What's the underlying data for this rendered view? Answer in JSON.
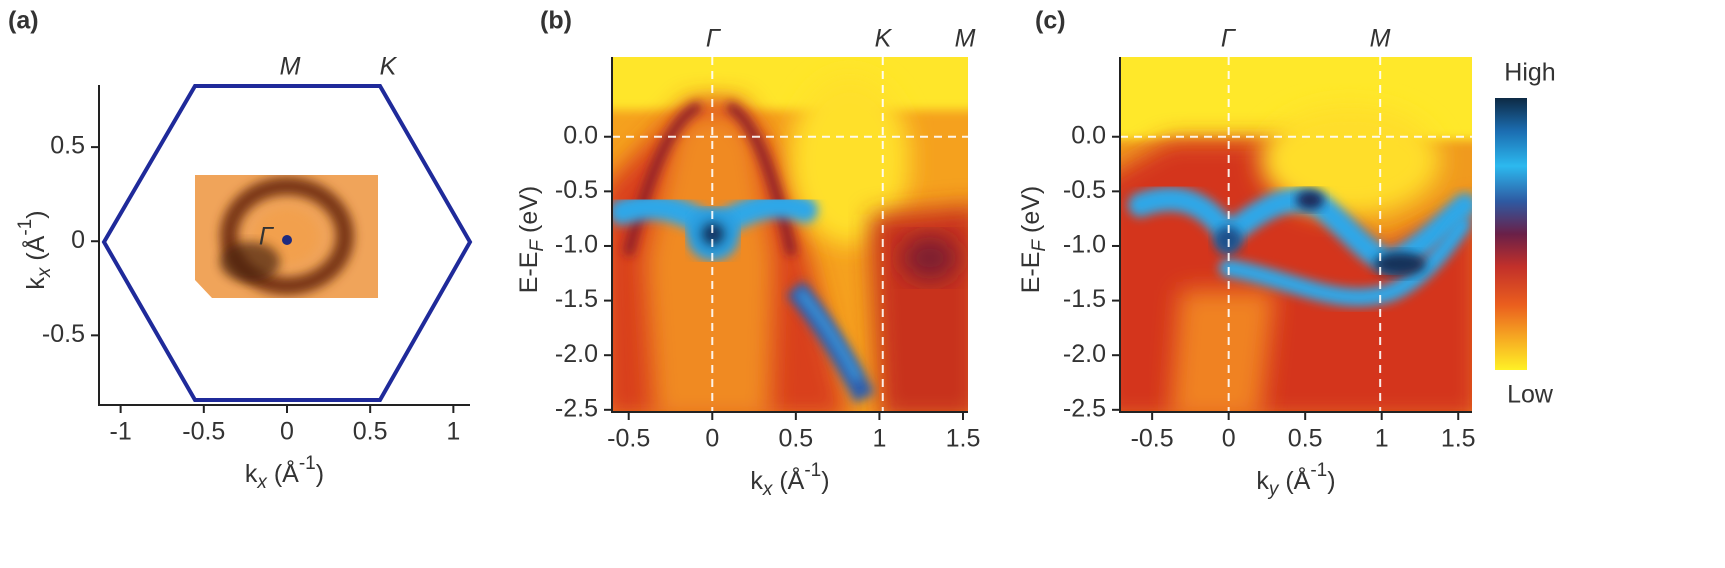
{
  "chart_data": [
    {
      "type": "heatmap",
      "panel_label": "(a)",
      "xlabel": [
        {
          "text": "k"
        },
        {
          "text": "x",
          "style": "sub"
        },
        {
          "text": " (Å"
        },
        {
          "text": "-1",
          "style": "sup"
        },
        {
          "text": ")"
        }
      ],
      "ylabel": [
        {
          "text": "k"
        },
        {
          "text": "x",
          "style": "sub"
        },
        {
          "text": " (Å"
        },
        {
          "text": "-1",
          "style": "sup"
        },
        {
          "text": ")"
        }
      ],
      "xlim": [
        -1.13,
        1.1
      ],
      "ylim": [
        -0.87,
        0.83
      ],
      "xticks": [
        -1,
        -0.5,
        0,
        0.5,
        1
      ],
      "yticks": [
        -0.5,
        0,
        0.5
      ],
      "annotations": [
        {
          "text": "M",
          "color": "#111111"
        },
        {
          "text": "K",
          "color": "#111111"
        },
        {
          "text": "Γ",
          "color": "#1c2a80"
        }
      ]
    },
    {
      "type": "heatmap",
      "panel_label": "(b)",
      "xlabel": [
        {
          "text": "k"
        },
        {
          "text": "x",
          "style": "sub"
        },
        {
          "text": " (Å"
        },
        {
          "text": "-1",
          "style": "sup"
        },
        {
          "text": ")"
        }
      ],
      "ylabel": [
        {
          "text": "E-E"
        },
        {
          "text": "F",
          "style": "sub"
        },
        {
          "text": " (eV)"
        }
      ],
      "xlim": [
        -0.6,
        1.53
      ],
      "ylim": [
        -2.52,
        0.73
      ],
      "xticks": [
        -0.5,
        0,
        0.5,
        1,
        1.5
      ],
      "yticks": [
        -2.5,
        {
          "value": -2,
          "label": "-2.0"
        },
        -1.5,
        {
          "value": -1,
          "label": "-1.0"
        },
        -0.5,
        {
          "value": 0,
          "label": "0.0"
        }
      ],
      "vlines": [
        0,
        1.02
      ],
      "hlines": [
        0
      ],
      "annotations": [
        {
          "text": "Γ",
          "color": "#1c2a80"
        },
        {
          "text": "K",
          "color": "#111111"
        },
        {
          "text": "M",
          "color": "#111111"
        }
      ]
    },
    {
      "type": "heatmap",
      "panel_label": "(c)",
      "xlabel": [
        {
          "text": "k"
        },
        {
          "text": "y",
          "style": "sub"
        },
        {
          "text": " (Å"
        },
        {
          "text": "-1",
          "style": "sup"
        },
        {
          "text": ")"
        }
      ],
      "ylabel": [
        {
          "text": "E-E"
        },
        {
          "text": "F",
          "style": "sub"
        },
        {
          "text": " (eV)"
        }
      ],
      "xlim": [
        -0.71,
        1.59
      ],
      "ylim": [
        -2.52,
        0.73
      ],
      "xticks": [
        -0.5,
        0,
        0.5,
        1,
        1.5
      ],
      "yticks": [
        -2.5,
        {
          "value": -2,
          "label": "-2.0"
        },
        -1.5,
        {
          "value": -1,
          "label": "-1.0"
        },
        -0.5,
        {
          "value": 0,
          "label": "0.0"
        }
      ],
      "vlines": [
        0,
        0.99
      ],
      "hlines": [
        0
      ],
      "annotations": [
        {
          "text": "Γ",
          "color": "#1c2a80"
        },
        {
          "text": "M",
          "color": "#111111"
        }
      ],
      "colorbar": {
        "high": "High",
        "low": "Low"
      }
    }
  ]
}
